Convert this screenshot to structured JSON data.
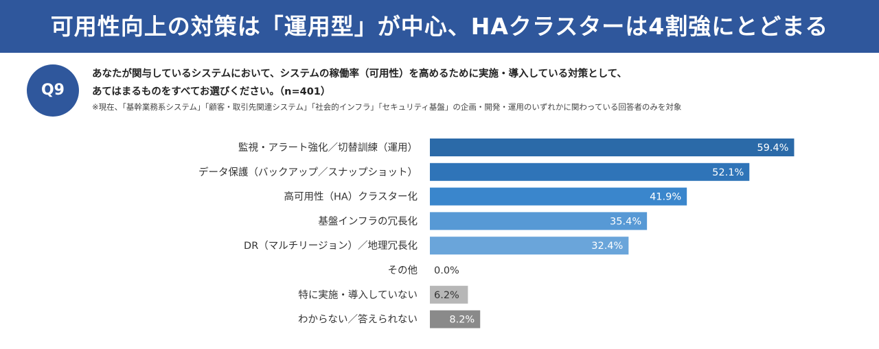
{
  "header": {
    "title": "可用性向上の対策は「運用型」が中心、HAクラスターは4割強にとどまる"
  },
  "question": {
    "badge": "Q9",
    "line1": "あなたが関与しているシステムにおいて、システムの稼働率（可用性）を高めるために実施・導入している対策として、",
    "line2": "あてはまるものをすべてお選びください。（n=401）",
    "note": "※現在、「基幹業務系システム」「顧客・取引先関連システム」「社会的インフラ」「セキュリティ基盤」の企画・開発・運用のいずれかに関わっている回答者のみを対象"
  },
  "chart_data": {
    "type": "bar",
    "orientation": "horizontal",
    "categories": [
      "監視・アラート強化／切替訓練（運用）",
      "データ保護（バックアップ／スナップショット）",
      "高可用性（HA）クラスター化",
      "基盤インフラの冗長化",
      "DR（マルチリージョン）／地理冗長化",
      "その他",
      "特に実施・導入していない",
      "わからない／答えられない"
    ],
    "values": [
      59.4,
      52.1,
      41.9,
      35.4,
      32.4,
      0.0,
      6.2,
      8.2
    ],
    "value_labels": [
      "59.4%",
      "52.1%",
      "41.9%",
      "35.4%",
      "32.4%",
      "0.0%",
      "6.2%",
      "8.2%"
    ],
    "colors": [
      "#2b6aa8",
      "#2f74b8",
      "#3a86cc",
      "#5799d5",
      "#6aa5da",
      "#cfcfcf",
      "#b7b7b7",
      "#8a8a8a"
    ],
    "xlim": [
      0,
      100
    ]
  }
}
